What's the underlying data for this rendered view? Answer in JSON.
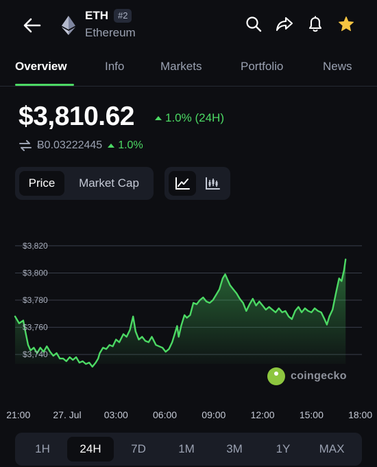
{
  "header": {
    "symbol": "ETH",
    "rank": "#2",
    "name": "Ethereum",
    "icons": [
      "back-arrow-icon",
      "ethereum-logo",
      "search-icon",
      "share-icon",
      "bell-icon",
      "star-icon"
    ],
    "star_color": "#f5c542"
  },
  "tabs": [
    {
      "label": "Overview",
      "active": true
    },
    {
      "label": "Info",
      "active": false
    },
    {
      "label": "Markets",
      "active": false
    },
    {
      "label": "Portfolio",
      "active": false
    },
    {
      "label": "News",
      "active": false
    }
  ],
  "price": {
    "value": "$3,810.62",
    "change": "1.0% (24H)",
    "btc_value": "Ƀ0.03222445",
    "btc_change": "1.0%"
  },
  "chart_toggle": {
    "price_label": "Price",
    "market_cap_label": "Market Cap",
    "selected": "Price",
    "views": [
      "line-chart-icon",
      "candlestick-icon"
    ],
    "selected_view": "line-chart-icon"
  },
  "chart_data": {
    "type": "area",
    "y_ticks": [
      "$3,820",
      "$3,800",
      "$3,780",
      "$3,760",
      "$3,740"
    ],
    "y_tick_values": [
      3820,
      3800,
      3780,
      3760,
      3740
    ],
    "ylim": [
      3733,
      3825
    ],
    "x_ticks": [
      "21:00",
      "27. Jul",
      "03:00",
      "06:00",
      "09:00",
      "12:00",
      "15:00",
      "18:00"
    ],
    "x_tick_hours": [
      0,
      3,
      6,
      9,
      12,
      15,
      18,
      21
    ],
    "xlim_hours": [
      -0.2,
      21.1
    ],
    "points": [
      [
        -0.2,
        3768
      ],
      [
        0.05,
        3763
      ],
      [
        0.3,
        3765
      ],
      [
        0.45,
        3756
      ],
      [
        0.6,
        3747
      ],
      [
        0.75,
        3743
      ],
      [
        0.95,
        3745
      ],
      [
        1.15,
        3741
      ],
      [
        1.35,
        3745
      ],
      [
        1.55,
        3742
      ],
      [
        1.75,
        3746
      ],
      [
        1.95,
        3742
      ],
      [
        2.15,
        3739
      ],
      [
        2.35,
        3741
      ],
      [
        2.55,
        3737
      ],
      [
        2.75,
        3737
      ],
      [
        2.95,
        3735
      ],
      [
        3.15,
        3738
      ],
      [
        3.35,
        3736
      ],
      [
        3.55,
        3738
      ],
      [
        3.75,
        3734
      ],
      [
        3.95,
        3735
      ],
      [
        4.15,
        3733
      ],
      [
        4.35,
        3734
      ],
      [
        4.55,
        3731
      ],
      [
        4.75,
        3734
      ],
      [
        4.9,
        3737
      ],
      [
        5.0,
        3741
      ],
      [
        5.2,
        3745
      ],
      [
        5.4,
        3744
      ],
      [
        5.6,
        3747
      ],
      [
        5.8,
        3746
      ],
      [
        6.0,
        3751
      ],
      [
        6.2,
        3749
      ],
      [
        6.45,
        3755
      ],
      [
        6.65,
        3753
      ],
      [
        6.85,
        3758
      ],
      [
        7.05,
        3768
      ],
      [
        7.2,
        3757
      ],
      [
        7.4,
        3751
      ],
      [
        7.6,
        3753
      ],
      [
        7.8,
        3750
      ],
      [
        8.0,
        3749
      ],
      [
        8.2,
        3753
      ],
      [
        8.45,
        3747
      ],
      [
        8.65,
        3746
      ],
      [
        8.85,
        3745
      ],
      [
        9.05,
        3742
      ],
      [
        9.25,
        3744
      ],
      [
        9.45,
        3749
      ],
      [
        9.6,
        3755
      ],
      [
        9.75,
        3761
      ],
      [
        9.85,
        3753
      ],
      [
        10.0,
        3761
      ],
      [
        10.2,
        3769
      ],
      [
        10.35,
        3767
      ],
      [
        10.55,
        3769
      ],
      [
        10.75,
        3778
      ],
      [
        10.95,
        3777
      ],
      [
        11.15,
        3780
      ],
      [
        11.35,
        3782
      ],
      [
        11.55,
        3779
      ],
      [
        11.75,
        3778
      ],
      [
        11.95,
        3780
      ],
      [
        12.15,
        3784
      ],
      [
        12.35,
        3788
      ],
      [
        12.55,
        3796
      ],
      [
        12.7,
        3799
      ],
      [
        12.85,
        3795
      ],
      [
        13.0,
        3791
      ],
      [
        13.2,
        3788
      ],
      [
        13.4,
        3785
      ],
      [
        13.6,
        3781
      ],
      [
        13.8,
        3778
      ],
      [
        14.0,
        3772
      ],
      [
        14.2,
        3777
      ],
      [
        14.4,
        3781
      ],
      [
        14.6,
        3776
      ],
      [
        14.8,
        3779
      ],
      [
        15.0,
        3776
      ],
      [
        15.2,
        3773
      ],
      [
        15.4,
        3775
      ],
      [
        15.6,
        3773
      ],
      [
        15.8,
        3771
      ],
      [
        16.0,
        3774
      ],
      [
        16.2,
        3771
      ],
      [
        16.4,
        3772
      ],
      [
        16.6,
        3768
      ],
      [
        16.8,
        3766
      ],
      [
        17.0,
        3772
      ],
      [
        17.2,
        3775
      ],
      [
        17.4,
        3771
      ],
      [
        17.6,
        3774
      ],
      [
        17.8,
        3772
      ],
      [
        18.0,
        3771
      ],
      [
        18.2,
        3774
      ],
      [
        18.4,
        3772
      ],
      [
        18.6,
        3771
      ],
      [
        18.8,
        3766
      ],
      [
        18.95,
        3762
      ],
      [
        19.1,
        3768
      ],
      [
        19.3,
        3773
      ],
      [
        19.5,
        3785
      ],
      [
        19.7,
        3796
      ],
      [
        19.85,
        3794
      ],
      [
        20.0,
        3802
      ],
      [
        20.1,
        3810
      ]
    ],
    "line_color": "#4cd964",
    "grid": true
  },
  "watermark": "coingecko",
  "ranges": [
    {
      "label": "1H",
      "active": false
    },
    {
      "label": "24H",
      "active": true
    },
    {
      "label": "7D",
      "active": false
    },
    {
      "label": "1M",
      "active": false
    },
    {
      "label": "3M",
      "active": false
    },
    {
      "label": "1Y",
      "active": false
    },
    {
      "label": "MAX",
      "active": false
    }
  ]
}
